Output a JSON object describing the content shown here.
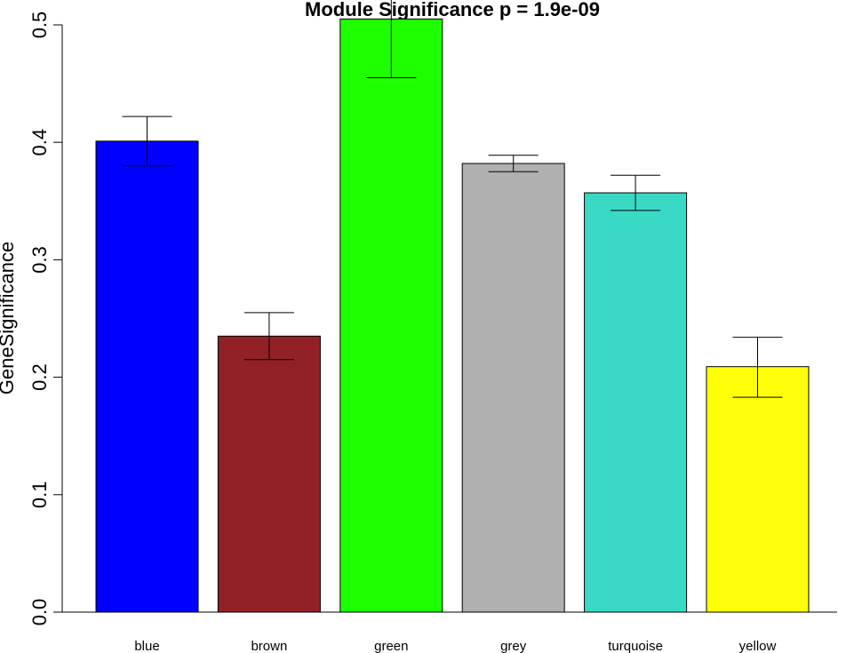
{
  "chart_data": {
    "type": "bar",
    "title": "Module Significance  p = 1.9e-09",
    "ylabel": "GeneSignificance",
    "xlabel": "",
    "ylim": [
      0,
      0.5
    ],
    "yticks": [
      "0.0",
      "0.1",
      "0.2",
      "0.3",
      "0.4",
      "0.5"
    ],
    "ytick_values": [
      0,
      0.1,
      0.2,
      0.3,
      0.4,
      0.5
    ],
    "grid": false,
    "categories": [
      "blue",
      "brown",
      "green",
      "grey",
      "turquoise",
      "yellow"
    ],
    "values": [
      0.401,
      0.235,
      0.505,
      0.382,
      0.357,
      0.209
    ],
    "error_low": [
      0.38,
      0.215,
      0.455,
      0.375,
      0.342,
      0.183
    ],
    "error_high": [
      0.422,
      0.255,
      0.555,
      0.389,
      0.372,
      0.234
    ],
    "colors": [
      "#0000ff",
      "#922126",
      "#1eff00",
      "#b0b0b0",
      "#3ad9c5",
      "#ffff0a"
    ]
  }
}
